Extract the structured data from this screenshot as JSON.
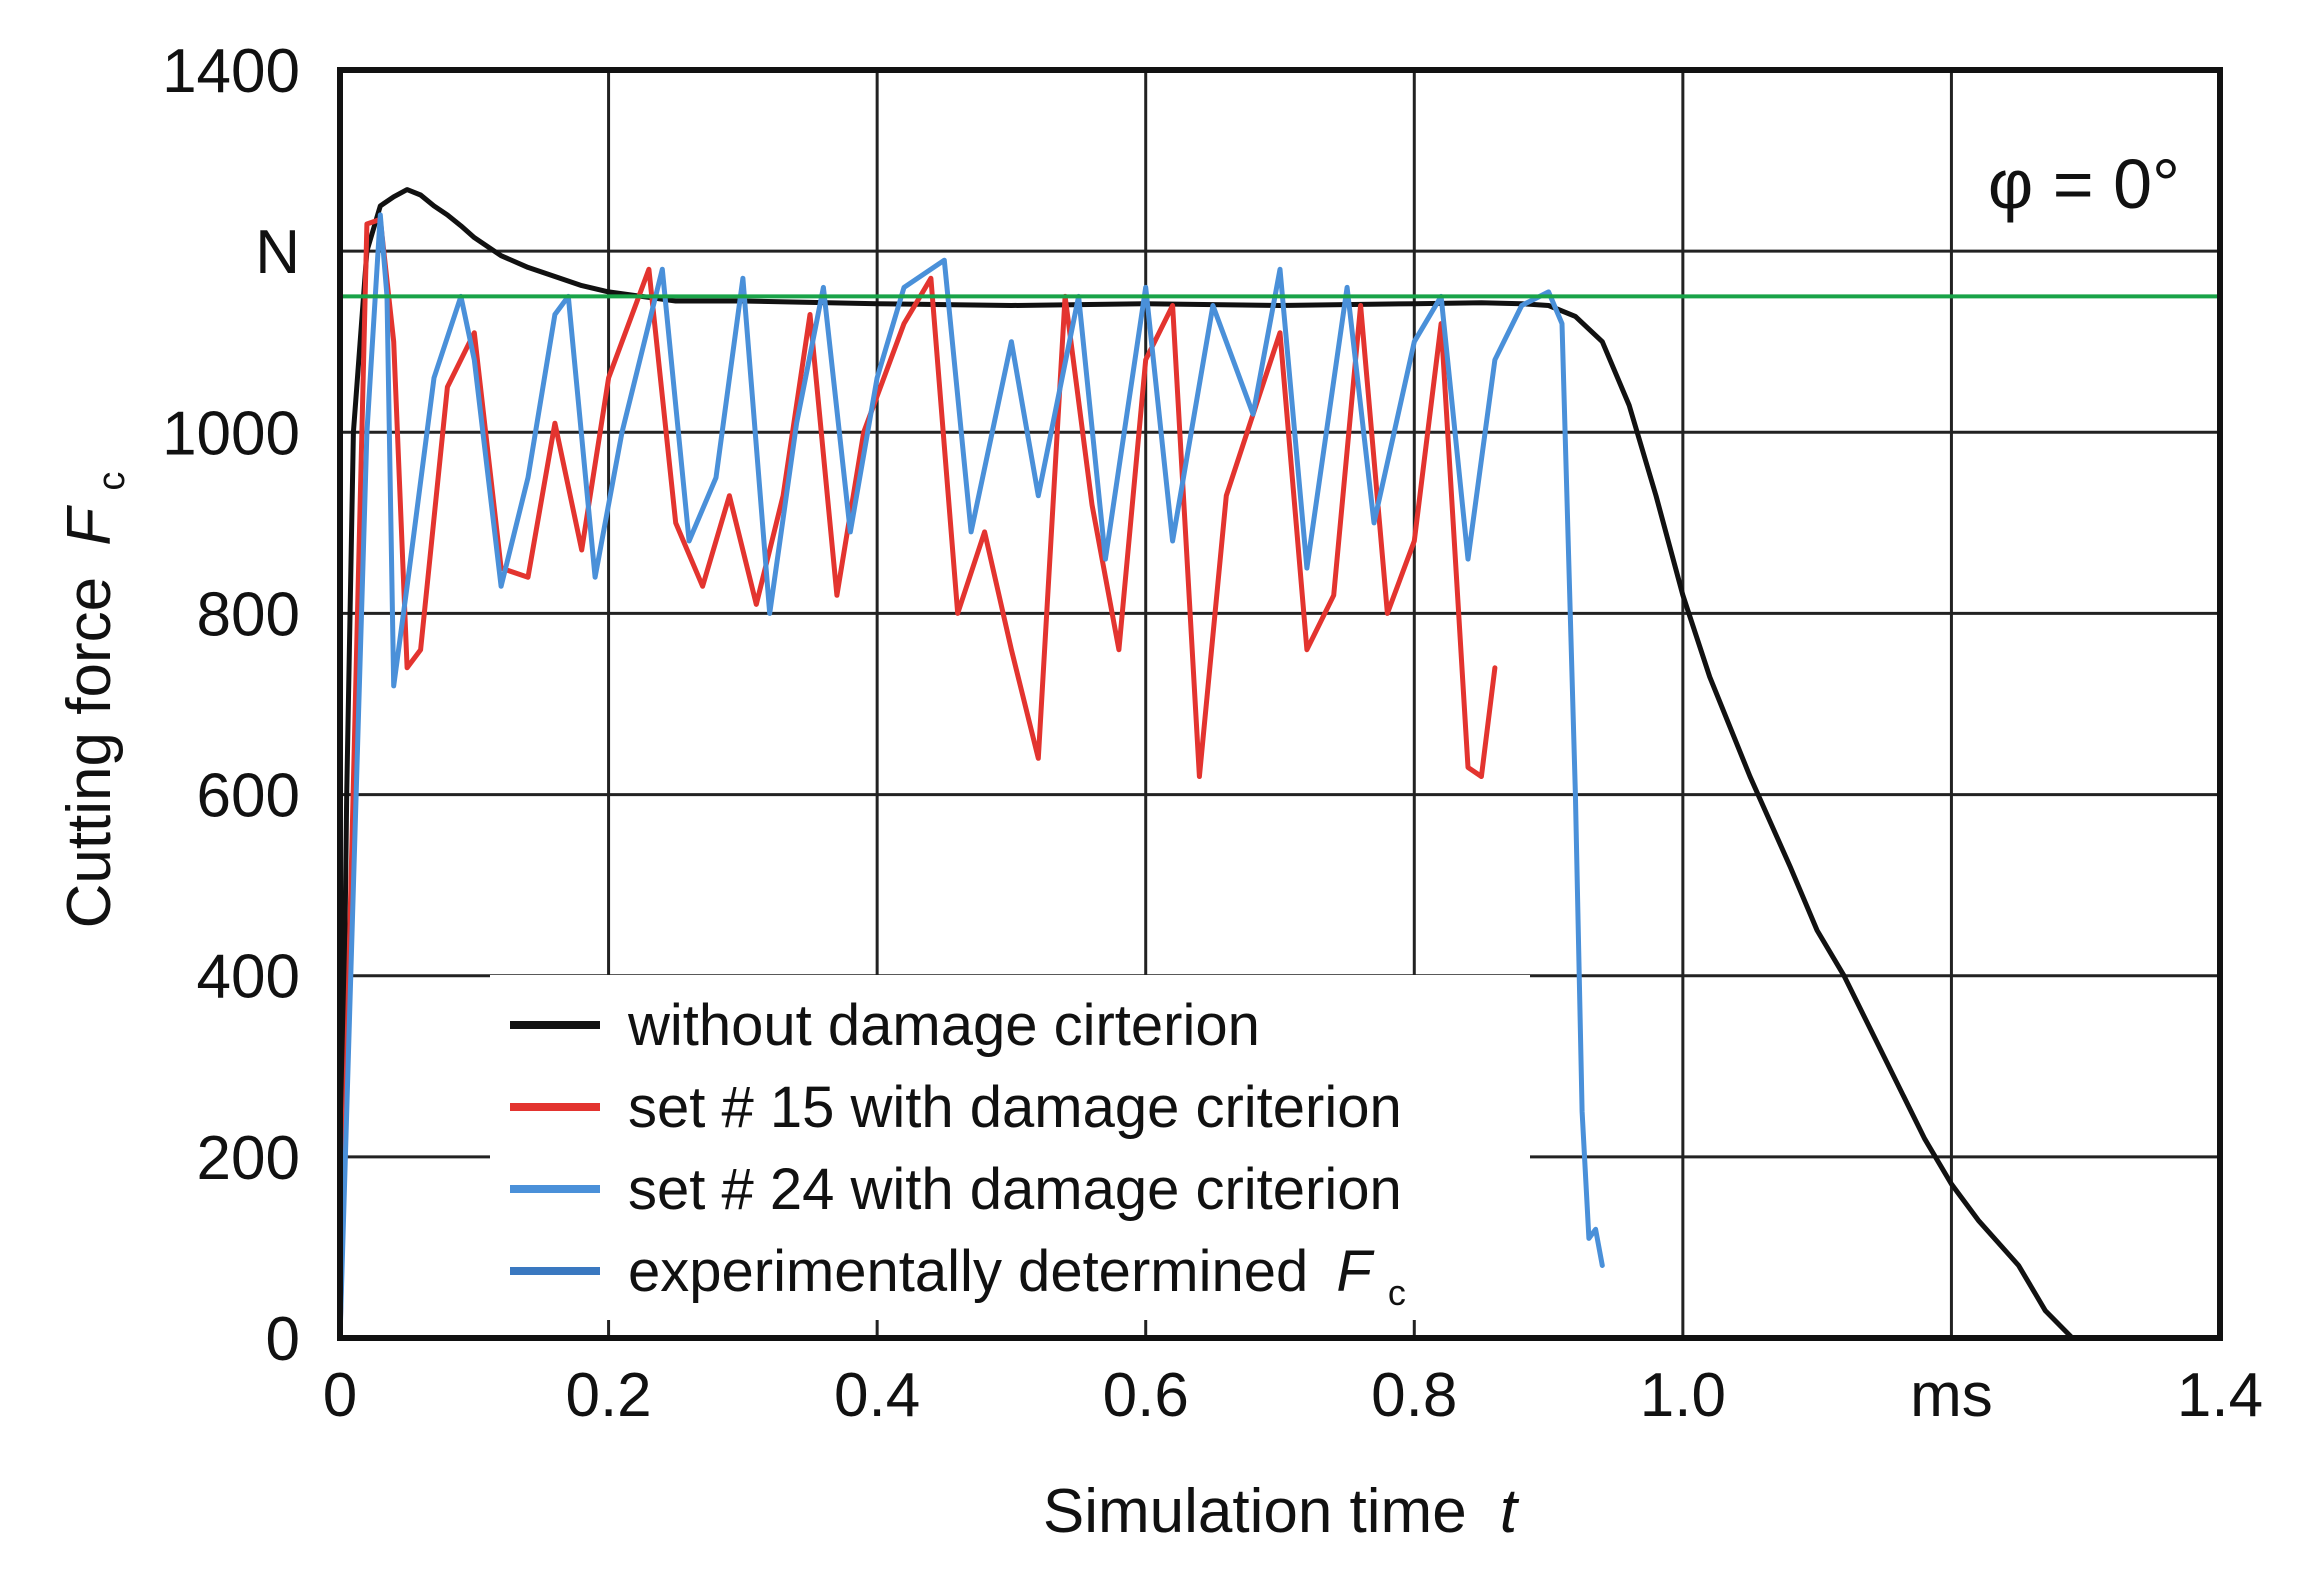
{
  "chart_data": {
    "type": "line",
    "title": "",
    "xlabel": "Simulation time",
    "xlabel_var": "t",
    "ylabel": "Cutting force",
    "ylabel_var": "F",
    "ylabel_sub": "c",
    "xlim": [
      0,
      1.4
    ],
    "ylim": [
      0,
      1400
    ],
    "x_ticks": [
      {
        "value": 0,
        "label": "0"
      },
      {
        "value": 0.2,
        "label": "0.2"
      },
      {
        "value": 0.4,
        "label": "0.4"
      },
      {
        "value": 0.6,
        "label": "0.6"
      },
      {
        "value": 0.8,
        "label": "0.8"
      },
      {
        "value": 1.0,
        "label": "1.0"
      },
      {
        "value": 1.2,
        "label": "ms"
      },
      {
        "value": 1.4,
        "label": "1.4"
      }
    ],
    "y_ticks": [
      {
        "value": 0,
        "label": "0"
      },
      {
        "value": 200,
        "label": "200"
      },
      {
        "value": 400,
        "label": "400"
      },
      {
        "value": 600,
        "label": "600"
      },
      {
        "value": 800,
        "label": "800"
      },
      {
        "value": 1000,
        "label": "1000"
      },
      {
        "value": 1200,
        "label": "N"
      },
      {
        "value": 1400,
        "label": "1400"
      }
    ],
    "grid": true,
    "annotation": "φ = 0°",
    "legend_position": "bottom-left",
    "series": [
      {
        "name": "without damage cirterion",
        "color": "#111111",
        "x": [
          0.0,
          0.005,
          0.01,
          0.02,
          0.03,
          0.04,
          0.05,
          0.06,
          0.07,
          0.08,
          0.09,
          0.1,
          0.12,
          0.14,
          0.16,
          0.18,
          0.2,
          0.25,
          0.3,
          0.4,
          0.5,
          0.6,
          0.7,
          0.8,
          0.85,
          0.88,
          0.9,
          0.92,
          0.94,
          0.96,
          0.98,
          1.0,
          1.02,
          1.05,
          1.08,
          1.1,
          1.12,
          1.15,
          1.18,
          1.2,
          1.22,
          1.25,
          1.27,
          1.29,
          1.31,
          1.32
        ],
        "y": [
          0,
          600,
          1000,
          1200,
          1250,
          1260,
          1268,
          1262,
          1250,
          1240,
          1228,
          1215,
          1195,
          1182,
          1172,
          1162,
          1155,
          1145,
          1145,
          1142,
          1140,
          1142,
          1140,
          1142,
          1143,
          1142,
          1140,
          1128,
          1100,
          1030,
          930,
          820,
          730,
          620,
          520,
          450,
          400,
          310,
          220,
          170,
          130,
          80,
          30,
          0,
          0,
          0
        ]
      },
      {
        "name": "set # 15 with damage criterion",
        "color": "#e3342f",
        "x": [
          0.0,
          0.02,
          0.03,
          0.04,
          0.05,
          0.06,
          0.08,
          0.1,
          0.12,
          0.14,
          0.16,
          0.18,
          0.2,
          0.23,
          0.25,
          0.27,
          0.29,
          0.31,
          0.33,
          0.35,
          0.37,
          0.39,
          0.42,
          0.44,
          0.46,
          0.48,
          0.5,
          0.52,
          0.54,
          0.56,
          0.58,
          0.6,
          0.62,
          0.64,
          0.66,
          0.68,
          0.7,
          0.72,
          0.74,
          0.76,
          0.78,
          0.8,
          0.82,
          0.84,
          0.85,
          0.86
        ],
        "y": [
          0,
          1230,
          1235,
          1100,
          740,
          760,
          1050,
          1110,
          850,
          840,
          1010,
          870,
          1060,
          1180,
          900,
          830,
          930,
          810,
          930,
          1130,
          820,
          1000,
          1120,
          1170,
          800,
          890,
          760,
          640,
          1150,
          920,
          760,
          1080,
          1140,
          620,
          930,
          1020,
          1110,
          760,
          820,
          1140,
          800,
          880,
          1120,
          630,
          620,
          740
        ]
      },
      {
        "name": "set # 24 with damage criterion",
        "color": "#4a90d9",
        "x": [
          0.0,
          0.02,
          0.03,
          0.035,
          0.04,
          0.05,
          0.07,
          0.09,
          0.1,
          0.12,
          0.14,
          0.16,
          0.17,
          0.19,
          0.21,
          0.24,
          0.26,
          0.28,
          0.3,
          0.32,
          0.34,
          0.36,
          0.38,
          0.4,
          0.42,
          0.45,
          0.47,
          0.5,
          0.52,
          0.55,
          0.57,
          0.6,
          0.62,
          0.65,
          0.68,
          0.7,
          0.72,
          0.75,
          0.77,
          0.8,
          0.82,
          0.84,
          0.86,
          0.88,
          0.9,
          0.91,
          0.92,
          0.925,
          0.93,
          0.935,
          0.94
        ],
        "y": [
          0,
          1000,
          1240,
          1150,
          720,
          830,
          1060,
          1150,
          1080,
          830,
          950,
          1130,
          1150,
          840,
          1000,
          1180,
          880,
          950,
          1170,
          800,
          1010,
          1160,
          890,
          1060,
          1160,
          1190,
          890,
          1100,
          930,
          1150,
          860,
          1160,
          880,
          1140,
          1020,
          1180,
          850,
          1160,
          900,
          1100,
          1150,
          860,
          1080,
          1140,
          1155,
          1120,
          600,
          250,
          110,
          120,
          80
        ]
      },
      {
        "name": "experimentally determined",
        "name_var": "F",
        "name_sub": "c",
        "color": "#19a348",
        "legend_color": "#3a78c0",
        "x": [
          0.0,
          1.4
        ],
        "y": [
          1150,
          1150
        ]
      }
    ]
  }
}
